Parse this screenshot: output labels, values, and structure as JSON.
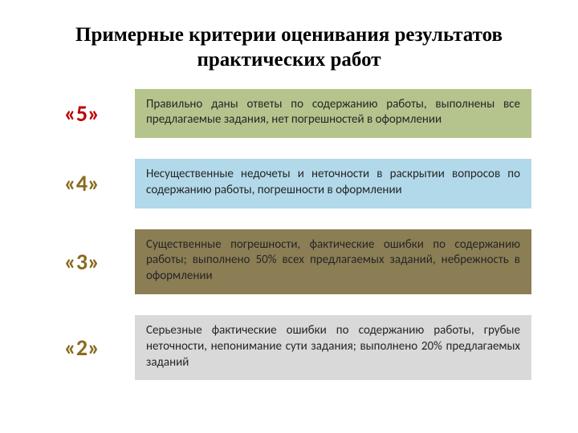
{
  "title": "Примерные критерии оценивания результатов практических работ",
  "rows": [
    {
      "grade": "«5»",
      "grade_color": "#c00000",
      "bg_color": "#b5c48d",
      "text": "Правильно даны ответы по содержанию работы, выполнены все предлагаемые задания, нет погрешностей в оформлении"
    },
    {
      "grade": "«4»",
      "grade_color": "#8b6a1f",
      "bg_color": "#b2d9ea",
      "text": "Несущественные недочеты и неточности в раскрытии вопросов по содержанию работы, погрешности в оформлении"
    },
    {
      "grade": "«3»",
      "grade_color": "#8b6a1f",
      "bg_color": "#8b7e54",
      "text": "Существенные погрешности, фактические ошибки по содержанию работы; выполнено 50% всех предлагаемых заданий, небрежность в оформлении"
    },
    {
      "grade": "«2»",
      "grade_color": "#8b6a1f",
      "bg_color": "#d9d9d9",
      "text": "Серьезные фактические ошибки по содержанию работы, грубые неточности, непонимание сути задания; выполнено 20% предлагаемых заданий"
    }
  ],
  "style": {
    "grade_fontsize": 28,
    "desc_fontsize": 15,
    "title_fontsize": 25,
    "title_fontfamily": "Times New Roman",
    "body_fontfamily": "Calibri"
  }
}
